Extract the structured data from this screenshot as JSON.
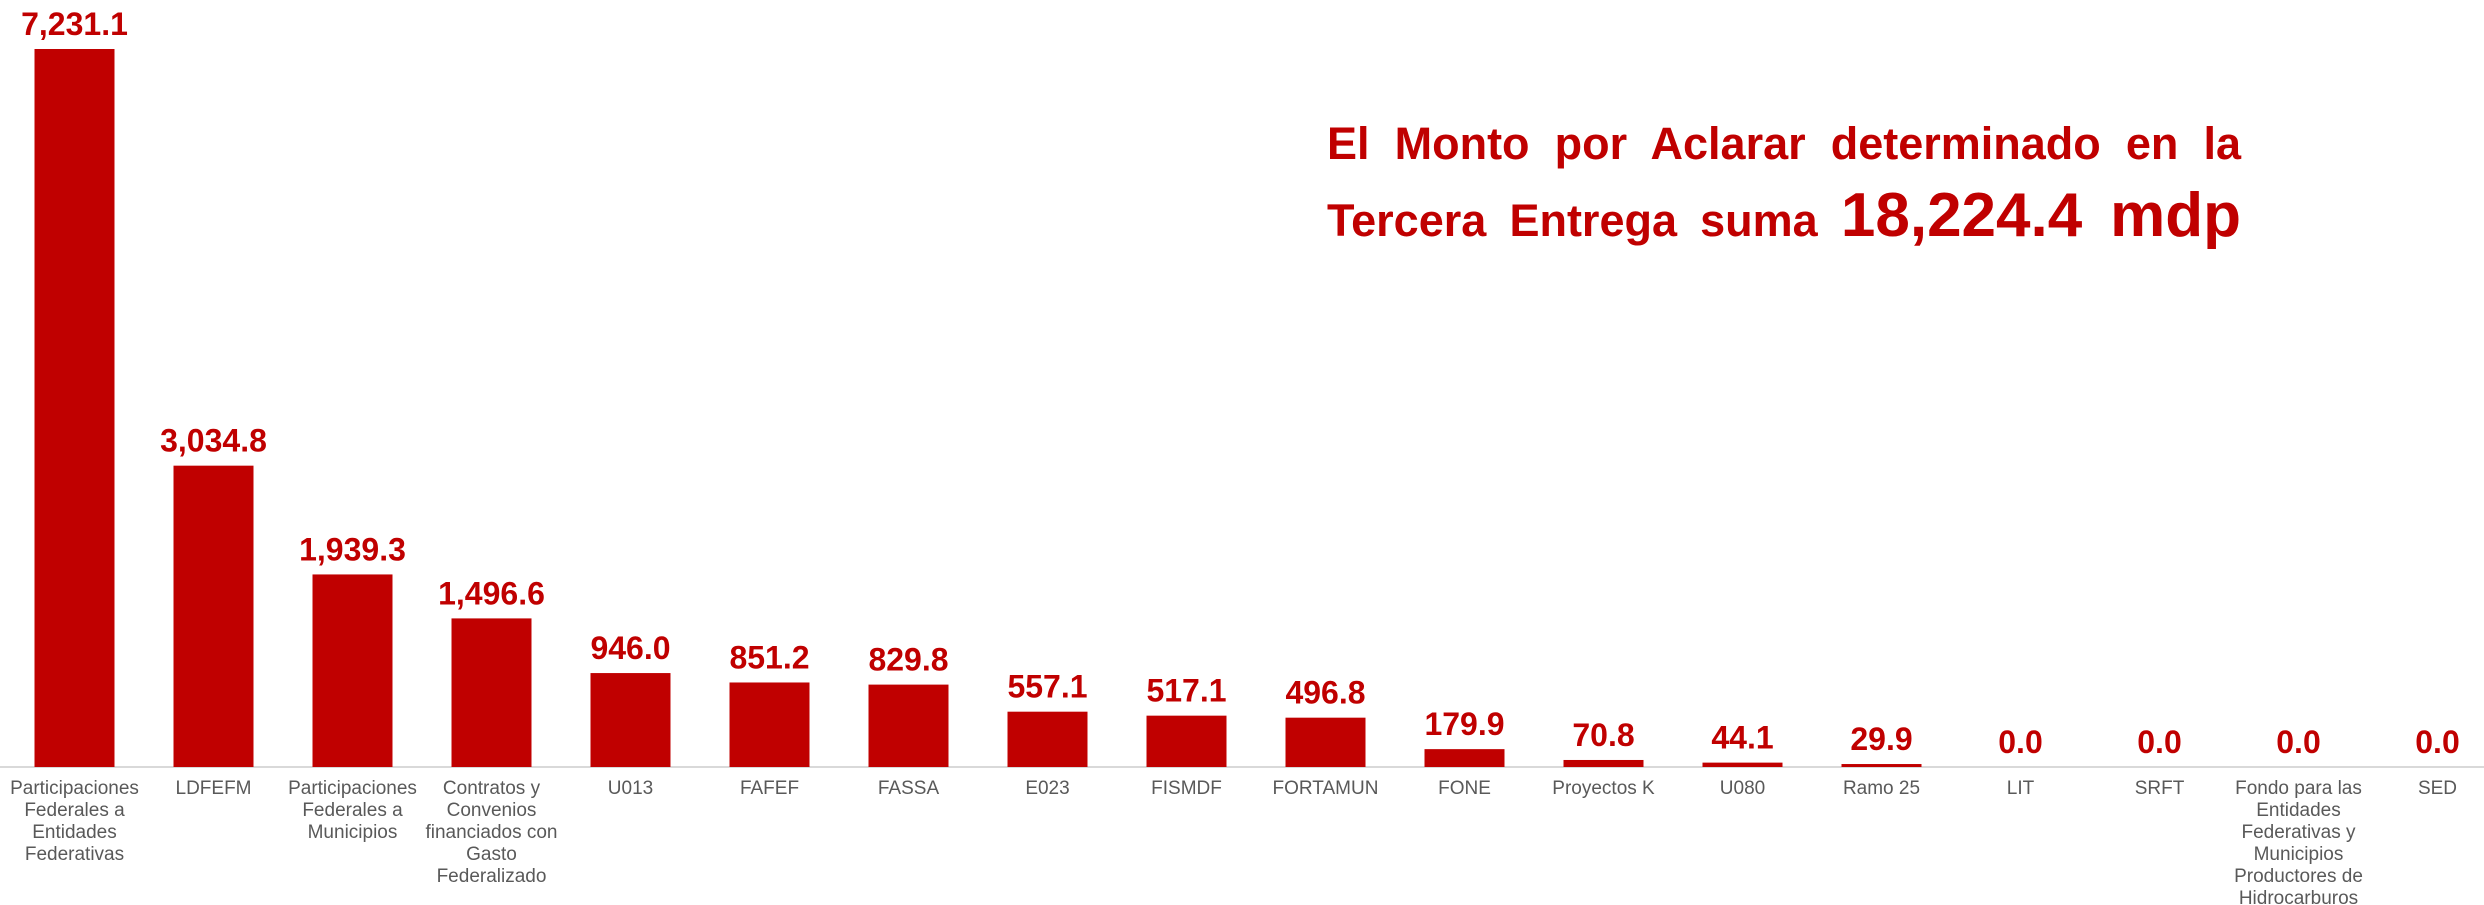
{
  "chart_data": {
    "type": "bar",
    "annotation": [
      "El Monto por Aclarar determinado en la",
      "Tercera Entrega suma"
    ],
    "annotation_highlight": "18,224.4 mdp",
    "categories": [
      "Participaciones Federales a Entidades Federativas",
      "LDFEFM",
      "Participaciones Federales a Municipios",
      "Contratos y Convenios financiados con Gasto Federalizado",
      "U013",
      "FAFEF",
      "FASSA",
      "E023",
      "FISMDF",
      "FORTAMUN",
      "FONE",
      "Proyectos K",
      "U080",
      "Ramo 25",
      "LIT",
      "SRFT",
      "Fondo para las Entidades Federativas y Municipios Productores de Hidrocarburos",
      "SED"
    ],
    "values": [
      7231.1,
      3034.8,
      1939.3,
      1496.6,
      946.0,
      851.2,
      829.8,
      557.1,
      517.1,
      496.8,
      179.9,
      70.8,
      44.1,
      29.9,
      0.0,
      0.0,
      0.0,
      0.0
    ],
    "value_labels": [
      "7,231.1",
      "3,034.8",
      "1,939.3",
      "1,496.6",
      "946.0",
      "851.2",
      "829.8",
      "557.1",
      "517.1",
      "496.8",
      "179.9",
      "70.8",
      "44.1",
      "29.9",
      "0.0",
      "0.0",
      "0.0",
      "0.0"
    ],
    "color": "#c00000"
  }
}
